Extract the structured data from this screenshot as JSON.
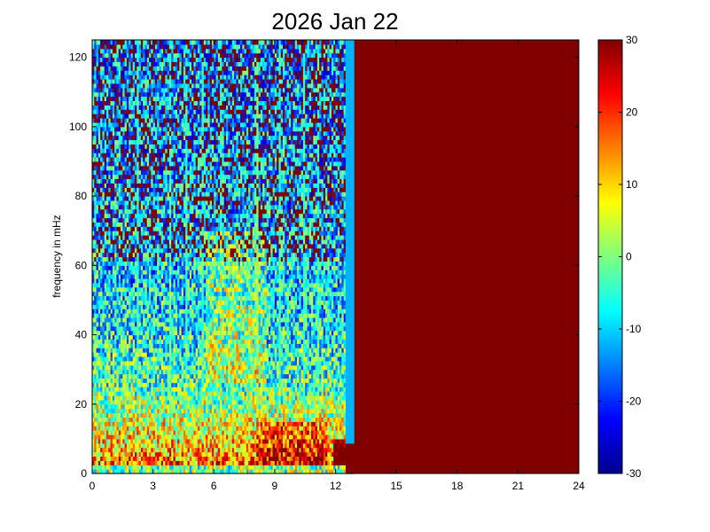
{
  "chart_data": {
    "type": "heatmap",
    "title": "2026 Jan 22",
    "xlabel": "",
    "ylabel": "frequency in mHz",
    "xlim": [
      0,
      24
    ],
    "ylim": [
      0,
      125
    ],
    "x_ticks": [
      0,
      3,
      6,
      9,
      12,
      15,
      18,
      21,
      24
    ],
    "y_ticks": [
      0,
      20,
      40,
      60,
      80,
      100,
      120
    ],
    "colorbar": {
      "colormap": "jet",
      "clim": [
        -30,
        30
      ],
      "ticks": [
        -30,
        -20,
        -10,
        0,
        10,
        20,
        30
      ]
    },
    "data_end_hour": 12.9,
    "saturated_after_hour": 12.9,
    "saturated_value": 30,
    "colormap_colors": [
      "#00008f",
      "#0000ff",
      "#00ffff",
      "#ffff00",
      "#ff0000",
      "#800000"
    ]
  }
}
